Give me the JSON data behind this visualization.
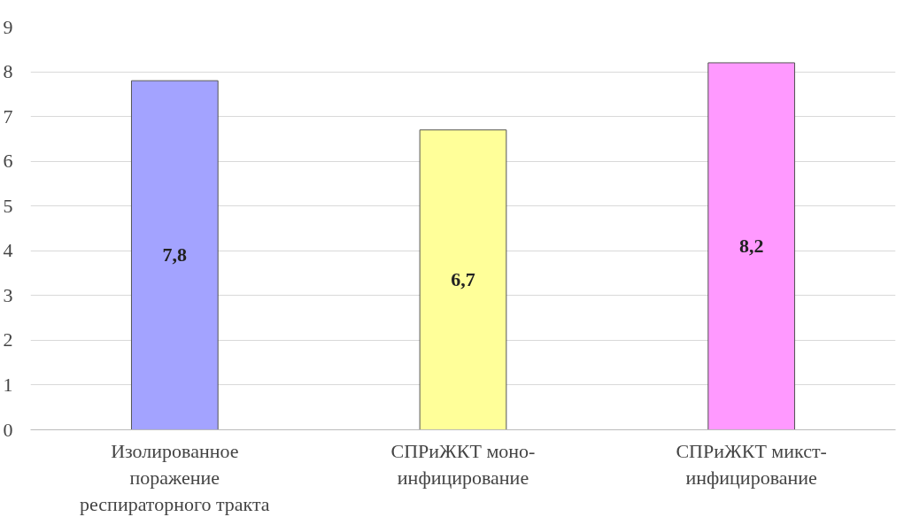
{
  "chart_data": {
    "type": "bar",
    "categories": [
      "Изолированное\nпоражение\nреспираторного тракта",
      "СПРиЖКТ моно-\nинфицирование",
      "СПРиЖКТ микст-\nинфицирование"
    ],
    "values": [
      7.8,
      6.7,
      8.2
    ],
    "colors": [
      "#a3a3ff",
      "#ffff99",
      "#ff99ff"
    ],
    "value_labels": [
      "7,8",
      "6,7",
      "8,2"
    ],
    "ylim": [
      0,
      9
    ],
    "yticks": [
      0,
      1,
      2,
      3,
      4,
      5,
      6,
      7,
      8,
      9
    ],
    "grid": "y"
  }
}
